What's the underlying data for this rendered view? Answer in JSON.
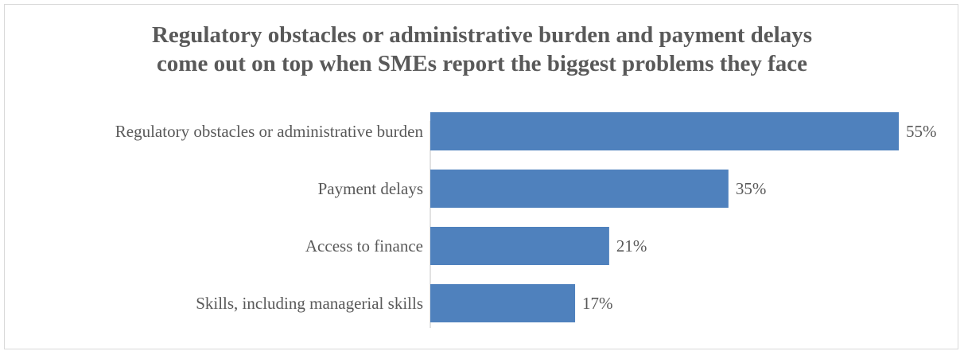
{
  "chart_data": {
    "type": "bar",
    "orientation": "horizontal",
    "title_lines": [
      "Regulatory obstacles or administrative burden and payment delays",
      "come out on top when SMEs report the biggest problems they face"
    ],
    "categories": [
      "Regulatory obstacles or administrative burden",
      "Payment delays",
      "Access to finance",
      "Skills, including managerial skills"
    ],
    "values": [
      55,
      35,
      21,
      17
    ],
    "value_labels": [
      "55%",
      "35%",
      "21%",
      "17%"
    ],
    "xlim": [
      0,
      55
    ],
    "grid": false,
    "legend": "none",
    "colors": {
      "bar": "#4f81bd",
      "text": "#595959",
      "axis": "#d9d9d9"
    }
  }
}
